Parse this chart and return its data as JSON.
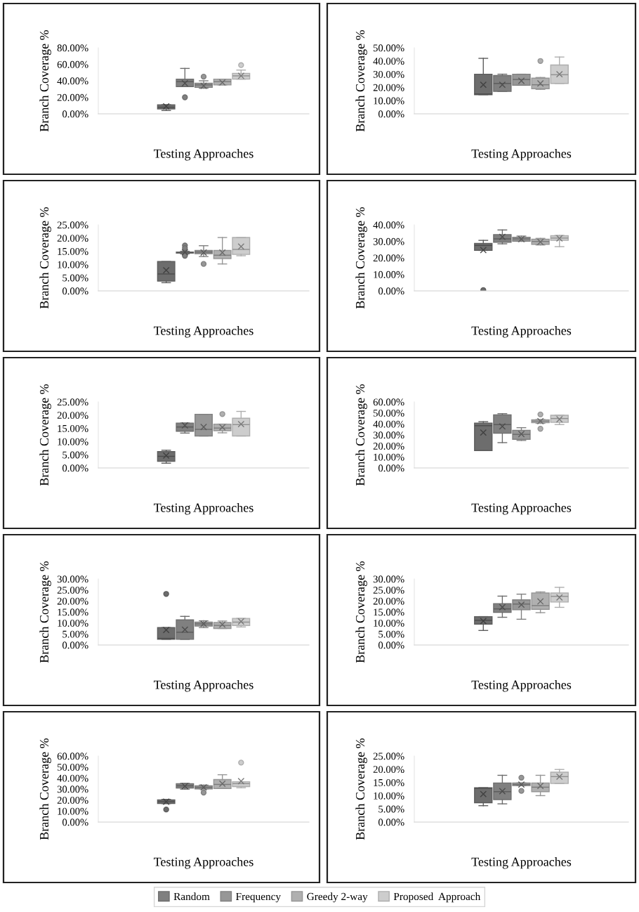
{
  "chart_data": [
    {
      "type": "box",
      "categories": [
        null
      ],
      "xlabel": "Testing Approaches",
      "ylabel": "Branch Coverage %",
      "tick_labels": "y",
      "legend": "bottom",
      "ylim": [
        0,
        80
      ],
      "yticks": [
        {
          "value": 0,
          "label": "0.00%"
        },
        {
          "value": 20,
          "label": "20.00%"
        },
        {
          "value": 40,
          "label": "40.00%"
        },
        {
          "value": 60,
          "label": "60.00%"
        },
        {
          "value": 80,
          "label": "80.00%"
        }
      ],
      "series": [
        {
          "color": "#6d6d6d",
          "boxes": [
            {
              "low": 4,
              "q1": 6,
              "median": 8,
              "q3": 11,
              "high": 11,
              "mean": 9
            }
          ]
        },
        {
          "name": "Random",
          "color": "#808080",
          "boxes": [
            {
              "low": 33,
              "q1": 33,
              "median": 39,
              "q3": 42,
              "high": 55,
              "mean": 37,
              "outliers": [
                20
              ]
            }
          ]
        },
        {
          "name": "Frequency",
          "color": "#979797",
          "boxes": [
            {
              "low": 31,
              "q1": 32,
              "median": 35,
              "q3": 37,
              "high": 40,
              "mean": 34,
              "outliers": [
                45
              ]
            }
          ]
        },
        {
          "name": "Greedy 2-way",
          "color": "#b0b0b0",
          "boxes": [
            {
              "low": 35,
              "q1": 35,
              "median": 39,
              "q3": 42,
              "high": 42,
              "mean": 38
            }
          ]
        },
        {
          "name": "Proposed  Approach",
          "color": "#cdcdcd",
          "boxes": [
            {
              "low": 42,
              "q1": 42,
              "median": 46,
              "q3": 49,
              "high": 53,
              "mean": 46,
              "outliers": [
                59
              ]
            }
          ]
        }
      ]
    },
    {
      "type": "box",
      "categories": [
        null
      ],
      "xlabel": "Testing Approaches",
      "ylabel": "Branch Coverage %",
      "tick_labels": "y",
      "ylim": [
        0,
        50
      ],
      "yticks": [
        {
          "value": 0,
          "label": "0.00%"
        },
        {
          "value": 10,
          "label": "10.00%"
        },
        {
          "value": 20,
          "label": "20.00%"
        },
        {
          "value": 30,
          "label": "30.00%"
        },
        {
          "value": 40,
          "label": "40.00%"
        },
        {
          "value": 50,
          "label": "50.00%"
        }
      ],
      "series": [
        {
          "color": "#6d6d6d",
          "boxes": [
            {
              "low": 14.5,
              "q1": 14.5,
              "median": 15,
              "q3": 30,
              "high": 42,
              "mean": 22
            }
          ]
        },
        {
          "color": "#808080",
          "boxes": [
            {
              "low": 17,
              "q1": 17,
              "median": 23,
              "q3": 29,
              "high": 30,
              "mean": 22
            }
          ]
        },
        {
          "color": "#979797",
          "boxes": [
            {
              "low": 21.6,
              "q1": 21.6,
              "median": 26,
              "q3": 30,
              "high": 30,
              "mean": 25
            }
          ]
        },
        {
          "color": "#b0b0b0",
          "boxes": [
            {
              "low": 18.5,
              "q1": 19,
              "median": 22,
              "q3": 27,
              "high": 27.5,
              "mean": 23,
              "outliers": [
                40
              ]
            }
          ]
        },
        {
          "color": "#cdcdcd",
          "boxes": [
            {
              "low": 23,
              "q1": 23,
              "median": 29.6,
              "q3": 37,
              "high": 43,
              "mean": 30
            }
          ]
        }
      ]
    },
    {
      "type": "box",
      "categories": [
        null
      ],
      "xlabel": "Testing Approaches",
      "ylabel": "Branch Coverage %",
      "tick_labels": "y",
      "ylim": [
        0,
        25
      ],
      "yticks": [
        {
          "value": 0,
          "label": "0.00%"
        },
        {
          "value": 5,
          "label": "5.00%"
        },
        {
          "value": 10,
          "label": "10.00%"
        },
        {
          "value": 15,
          "label": "15.00%"
        },
        {
          "value": 20,
          "label": "20.00%"
        },
        {
          "value": 25,
          "label": "25.00%"
        }
      ],
      "series": [
        {
          "color": "#6d6d6d",
          "boxes": [
            {
              "low": 3.1,
              "q1": 3.7,
              "median": 6.4,
              "q3": 11.1,
              "high": 11.1,
              "mean": 7.8
            }
          ]
        },
        {
          "color": "#808080",
          "boxes": [
            {
              "low": 14.0,
              "q1": 14.3,
              "median": 14.5,
              "q3": 14.7,
              "high": 15.0,
              "mean": 14.6,
              "outliers": [
                17.2,
                16.2,
                13.3
              ]
            }
          ]
        },
        {
          "color": "#979797",
          "boxes": [
            {
              "low": 13,
              "q1": 14.1,
              "median": 14.7,
              "q3": 15.3,
              "high": 17.1,
              "mean": 14.5,
              "outliers": [
                10.2
              ]
            }
          ]
        },
        {
          "color": "#b0b0b0",
          "boxes": [
            {
              "low": 10.2,
              "q1": 12.2,
              "median": 13.5,
              "q3": 15.3,
              "high": 20.2,
              "mean": 14.5
            }
          ]
        },
        {
          "color": "#cdcdcd",
          "boxes": [
            {
              "low": 13.3,
              "q1": 13.8,
              "median": 15.7,
              "q3": 20.2,
              "high": 20.2,
              "mean": 16.8
            }
          ]
        }
      ]
    },
    {
      "type": "box",
      "categories": [
        null
      ],
      "xlabel": "Testing Approaches",
      "ylabel": "Branch Coverage %",
      "tick_labels": "y",
      "ylim": [
        0,
        40
      ],
      "yticks": [
        {
          "value": 0,
          "label": "0.00%"
        },
        {
          "value": 10,
          "label": "10.00%"
        },
        {
          "value": 20,
          "label": "20.00%"
        },
        {
          "value": 30,
          "label": "30.00%"
        },
        {
          "value": 40,
          "label": "40.00%"
        }
      ],
      "series": [
        {
          "color": "#6d6d6d",
          "boxes": [
            {
              "low": 24.5,
              "q1": 24.5,
              "median": 27.5,
              "q3": 28.7,
              "high": 30.6,
              "mean": 24.7,
              "outliers": [
                0.5
              ]
            }
          ]
        },
        {
          "color": "#808080",
          "boxes": [
            {
              "low": 28.5,
              "q1": 29.4,
              "median": 31.5,
              "q3": 34.1,
              "high": 36.9,
              "mean": 32.7
            }
          ]
        },
        {
          "color": "#979797",
          "boxes": [
            {
              "low": 30,
              "q1": 30.1,
              "median": 31.5,
              "q3": 32.5,
              "high": 33.2,
              "mean": 31.3
            }
          ]
        },
        {
          "color": "#b0b0b0",
          "boxes": [
            {
              "low": 27.8,
              "q1": 28.2,
              "median": 29.9,
              "q3": 31.3,
              "high": 31.8,
              "mean": 29.6
            }
          ]
        },
        {
          "color": "#cdcdcd",
          "boxes": [
            {
              "low": 26.8,
              "q1": 30.6,
              "median": 32,
              "q3": 33.4,
              "high": 33.6,
              "mean": 31.8
            }
          ]
        }
      ]
    },
    {
      "type": "box",
      "categories": [
        null
      ],
      "xlabel": "Testing Approaches",
      "ylabel": "Branch Coverage %",
      "tick_labels": "y",
      "ylim": [
        0,
        25
      ],
      "yticks": [
        {
          "value": 0,
          "label": "0.00%"
        },
        {
          "value": 5,
          "label": "5.00%"
        },
        {
          "value": 10,
          "label": "10.00%"
        },
        {
          "value": 15,
          "label": "15.00%"
        },
        {
          "value": 20,
          "label": "20.00%"
        },
        {
          "value": 25,
          "label": "25.00%"
        }
      ],
      "series": [
        {
          "color": "#6d6d6d",
          "boxes": [
            {
              "low": 1.8,
              "q1": 2.5,
              "median": 4.4,
              "q3": 6.2,
              "high": 6.7,
              "mean": 4.7
            }
          ]
        },
        {
          "color": "#808080",
          "boxes": [
            {
              "low": 13.2,
              "q1": 13.9,
              "median": 15.5,
              "q3": 17,
              "high": 17,
              "mean": 16.1
            }
          ]
        },
        {
          "color": "#979797",
          "boxes": [
            {
              "low": 12.1,
              "q1": 12.1,
              "median": 14.6,
              "q3": 20.3,
              "high": 20.3,
              "mean": 15.5
            }
          ]
        },
        {
          "color": "#b0b0b0",
          "boxes": [
            {
              "low": 13.3,
              "q1": 14.1,
              "median": 15.1,
              "q3": 16.6,
              "high": 16.6,
              "mean": 15.4,
              "outliers": [
                20.4
              ]
            }
          ]
        },
        {
          "color": "#cdcdcd",
          "boxes": [
            {
              "low": 12.1,
              "q1": 12.1,
              "median": 16.4,
              "q3": 18.8,
              "high": 21.4,
              "mean": 16.6
            }
          ]
        }
      ]
    },
    {
      "type": "box",
      "categories": [
        null
      ],
      "xlabel": "Testing Approaches",
      "ylabel": "Branch Coverage %",
      "tick_labels": "y",
      "ylim": [
        0,
        60
      ],
      "yticks": [
        {
          "value": 0,
          "label": "0.00%"
        },
        {
          "value": 10,
          "label": "10.00%"
        },
        {
          "value": 20,
          "label": "20.00%"
        },
        {
          "value": 30,
          "label": "30.00%"
        },
        {
          "value": 40,
          "label": "40.00%"
        },
        {
          "value": 50,
          "label": "50.00%"
        },
        {
          "value": 60,
          "label": "60.00%"
        }
      ],
      "series": [
        {
          "color": "#6d6d6d",
          "boxes": [
            {
              "low": 15.8,
              "q1": 15.8,
              "median": 38.4,
              "q3": 40.8,
              "high": 42,
              "mean": 32.2
            }
          ]
        },
        {
          "color": "#808080",
          "boxes": [
            {
              "low": 23,
              "q1": 31.5,
              "median": 39.4,
              "q3": 48.3,
              "high": 49.3,
              "mean": 37.7
            }
          ]
        },
        {
          "color": "#979797",
          "boxes": [
            {
              "low": 25,
              "q1": 26,
              "median": 30.5,
              "q3": 34.2,
              "high": 36.6,
              "mean": 30.8
            }
          ]
        },
        {
          "color": "#b0b0b0",
          "boxes": [
            {
              "low": 40.5,
              "q1": 41.1,
              "median": 42.5,
              "q3": 43.8,
              "high": 44,
              "mean": 42.5,
              "outliers": [
                48.6,
                35.6
              ]
            }
          ]
        },
        {
          "color": "#cdcdcd",
          "boxes": [
            {
              "low": 39.4,
              "q1": 41.4,
              "median": 44.9,
              "q3": 47.9,
              "high": 47.9,
              "mean": 44.2
            }
          ]
        }
      ]
    },
    {
      "type": "box",
      "categories": [
        null
      ],
      "xlabel": "Testing Approaches",
      "ylabel": "Branch Coverage %",
      "tick_labels": "y",
      "ylim": [
        0,
        30
      ],
      "yticks": [
        {
          "value": 0,
          "label": "0.00%"
        },
        {
          "value": 5,
          "label": "5.00%"
        },
        {
          "value": 10,
          "label": "10.00%"
        },
        {
          "value": 15,
          "label": "15.00%"
        },
        {
          "value": 20,
          "label": "20.00%"
        },
        {
          "value": 25,
          "label": "25.00%"
        },
        {
          "value": 30,
          "label": "30.00%"
        }
      ],
      "series": [
        {
          "color": "#6d6d6d",
          "boxes": [
            {
              "low": 2.6,
              "q1": 2.6,
              "median": 3,
              "q3": 7.9,
              "high": 7.9,
              "mean": 6.8,
              "outliers": [
                23.2
              ]
            }
          ]
        },
        {
          "color": "#808080",
          "boxes": [
            {
              "low": 2.6,
              "q1": 2.6,
              "median": 5.8,
              "q3": 11.4,
              "high": 13,
              "mean": 7.0
            }
          ]
        },
        {
          "color": "#979797",
          "boxes": [
            {
              "low": 7.9,
              "q1": 8.6,
              "median": 9.6,
              "q3": 10.4,
              "high": 11,
              "mean": 9.6
            }
          ]
        },
        {
          "color": "#b0b0b0",
          "boxes": [
            {
              "low": 7.5,
              "q1": 7.5,
              "median": 8.9,
              "q3": 10.2,
              "high": 10.9,
              "mean": 9.3
            }
          ]
        },
        {
          "color": "#cdcdcd",
          "boxes": [
            {
              "low": 8.2,
              "q1": 8.8,
              "median": 10.4,
              "q3": 12.1,
              "high": 12.1,
              "mean": 10.7
            }
          ]
        }
      ]
    },
    {
      "type": "box",
      "categories": [
        null
      ],
      "xlabel": "Testing Approaches",
      "ylabel": "Branch Coverage %",
      "tick_labels": "y",
      "ylim": [
        0,
        30
      ],
      "yticks": [
        {
          "value": 0,
          "label": "0.00%"
        },
        {
          "value": 5,
          "label": "5.00%"
        },
        {
          "value": 10,
          "label": "10.00%"
        },
        {
          "value": 15,
          "label": "15.00%"
        },
        {
          "value": 20,
          "label": "20.00%"
        },
        {
          "value": 25,
          "label": "25.00%"
        },
        {
          "value": 30,
          "label": "30.00%"
        }
      ],
      "series": [
        {
          "color": "#6d6d6d",
          "boxes": [
            {
              "low": 6.6,
              "q1": 9.5,
              "median": 11.2,
              "q3": 12.9,
              "high": 12.9,
              "mean": 10.9
            }
          ]
        },
        {
          "color": "#808080",
          "boxes": [
            {
              "low": 12.6,
              "q1": 14.8,
              "median": 16.4,
              "q3": 18.8,
              "high": 22.2,
              "mean": 17.2
            }
          ]
        },
        {
          "color": "#979797",
          "boxes": [
            {
              "low": 11.7,
              "q1": 16,
              "median": 18.6,
              "q3": 20.5,
              "high": 23.1,
              "mean": 18.3
            }
          ]
        },
        {
          "color": "#b0b0b0",
          "boxes": [
            {
              "low": 14.7,
              "q1": 16.2,
              "median": 17.9,
              "q3": 23.6,
              "high": 24.1,
              "mean": 19.8
            }
          ]
        },
        {
          "color": "#cdcdcd",
          "boxes": [
            {
              "low": 17.1,
              "q1": 19.5,
              "median": 22.1,
              "q3": 23.6,
              "high": 26.2,
              "mean": 21.6
            }
          ]
        }
      ]
    },
    {
      "type": "box",
      "categories": [
        null
      ],
      "xlabel": "Testing Approaches",
      "ylabel": "Branch Coverage %",
      "tick_labels": "y",
      "ylim": [
        0,
        60
      ],
      "yticks": [
        {
          "value": 0,
          "label": "0.00%"
        },
        {
          "value": 10,
          "label": "10.00%"
        },
        {
          "value": 20,
          "label": "20.00%"
        },
        {
          "value": 30,
          "label": "30.00%"
        },
        {
          "value": 40,
          "label": "40.00%"
        },
        {
          "value": 50,
          "label": "50.00%"
        },
        {
          "value": 60,
          "label": "60.00%"
        }
      ],
      "series": [
        {
          "color": "#6d6d6d",
          "boxes": [
            {
              "low": 16.8,
              "q1": 16.8,
              "median": 18.5,
              "q3": 20.1,
              "high": 20.6,
              "mean": 18.5,
              "outliers": [
                11.4
              ]
            }
          ]
        },
        {
          "color": "#808080",
          "boxes": [
            {
              "low": 29.9,
              "q1": 30.9,
              "median": 32.9,
              "q3": 34.9,
              "high": 35.2,
              "mean": 32.6
            }
          ]
        },
        {
          "color": "#979797",
          "boxes": [
            {
              "low": 30.2,
              "q1": 30.2,
              "median": 31.5,
              "q3": 32.9,
              "high": 33.6,
              "mean": 31.5,
              "outliers": [
                26.8
              ]
            }
          ]
        },
        {
          "color": "#b0b0b0",
          "boxes": [
            {
              "low": 30.5,
              "q1": 30.5,
              "median": 34.2,
              "q3": 38.6,
              "high": 43,
              "mean": 34.9
            }
          ]
        },
        {
          "color": "#cdcdcd",
          "boxes": [
            {
              "low": 31.2,
              "q1": 32.2,
              "median": 34.9,
              "q3": 36.6,
              "high": 36.6,
              "mean": 37.2,
              "outliers": [
                54
              ]
            }
          ]
        }
      ]
    },
    {
      "type": "box",
      "categories": [
        null
      ],
      "xlabel": "Testing Approaches",
      "ylabel": "Branch Coverage %",
      "tick_labels": "y",
      "ylim": [
        0,
        25
      ],
      "yticks": [
        {
          "value": 0,
          "label": "0.00%"
        },
        {
          "value": 5,
          "label": "5.00%"
        },
        {
          "value": 10,
          "label": "10.00%"
        },
        {
          "value": 15,
          "label": "15.00%"
        },
        {
          "value": 20,
          "label": "20.00%"
        },
        {
          "value": 25,
          "label": "25.00%"
        }
      ],
      "series": [
        {
          "color": "#6d6d6d",
          "boxes": [
            {
              "low": 6.2,
              "q1": 7.3,
              "median": 12.8,
              "q3": 13,
              "high": 13,
              "mean": 10.6
            }
          ]
        },
        {
          "color": "#808080",
          "boxes": [
            {
              "low": 6.9,
              "q1": 8.5,
              "median": 11.5,
              "q3": 14.8,
              "high": 17.7,
              "mean": 11.7
            }
          ]
        },
        {
          "color": "#979797",
          "boxes": [
            {
              "low": 13.8,
              "q1": 13.8,
              "median": 14.2,
              "q3": 14.8,
              "high": 14.8,
              "mean": 14.2,
              "outliers": [
                16.8,
                11.8
              ]
            }
          ]
        },
        {
          "color": "#b0b0b0",
          "boxes": [
            {
              "low": 10,
              "q1": 11.5,
              "median": 13.2,
              "q3": 14.8,
              "high": 17.7,
              "mean": 13.7
            }
          ]
        },
        {
          "color": "#cdcdcd",
          "boxes": [
            {
              "low": 14.6,
              "q1": 14.6,
              "median": 17.2,
              "q3": 18.9,
              "high": 19.9,
              "mean": 17.2
            }
          ]
        }
      ]
    }
  ]
}
